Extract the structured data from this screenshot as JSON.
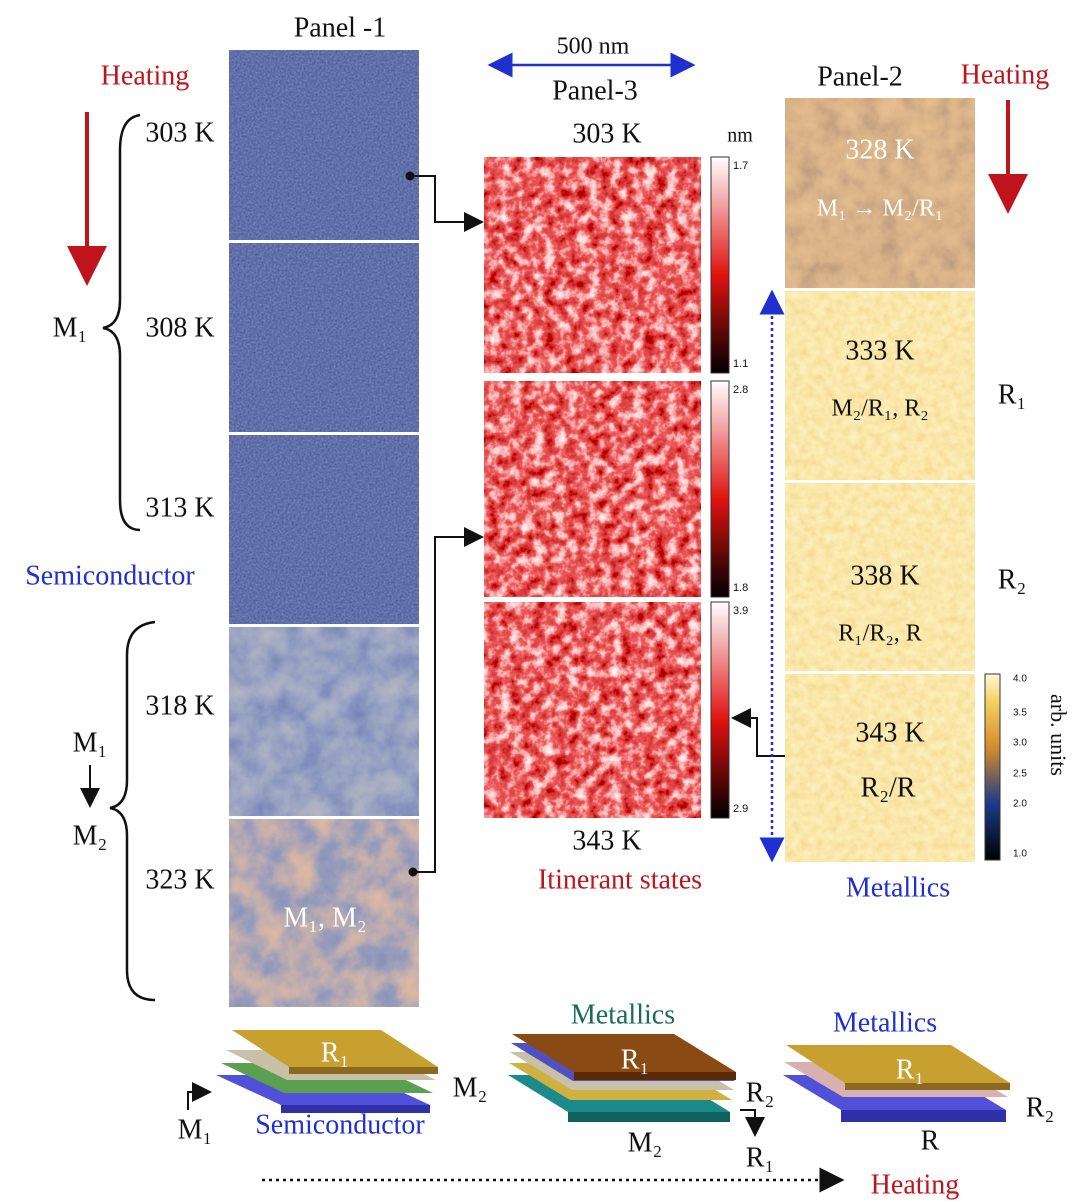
{
  "panel1": {
    "title": "Panel -1",
    "heading": "Heating",
    "temps": [
      "303 K",
      "308 K",
      "313 K",
      "318 K",
      "323 K"
    ],
    "phase_upper": "M₁",
    "semiconductor": "Semiconductor",
    "transition_from": "M₁",
    "transition_to": "M₂",
    "image_label": "M₁, M₂"
  },
  "panel3": {
    "scale": "500 nm",
    "title": "Panel-3",
    "top_temp": "303 K",
    "unit": "nm",
    "colorbars": [
      [
        "1.7",
        "1.1"
      ],
      [
        "2.8",
        "1.8"
      ],
      [
        "3.9",
        "2.9"
      ]
    ],
    "bottom_temp": "343 K",
    "caption": "Itinerant states"
  },
  "panel2": {
    "title": "Panel-2",
    "heading": "Heating",
    "images": [
      {
        "temp": "328 K",
        "phase": "M₁ → M₂/R₁"
      },
      {
        "temp": "333 K",
        "phase": "M₂/R₁, R₂",
        "side": "R₁"
      },
      {
        "temp": "338 K",
        "phase": "R₁/R₂, R",
        "side": "R₂"
      },
      {
        "temp": "343 K",
        "phase": "R₂/R"
      }
    ],
    "colorbar": [
      "4.0",
      "3.5",
      "3.0",
      "2.5",
      "2.0",
      "1.0"
    ],
    "unit": "arb. units",
    "caption": "Metallics"
  },
  "bottom": {
    "left": {
      "top": "R₁",
      "right": "M₂",
      "corner": "M₁",
      "label": "Semiconductor"
    },
    "middle": {
      "title": "Metallics",
      "top": "R₁",
      "right": "R₂",
      "below": "M₂",
      "arrow": "R₁"
    },
    "right": {
      "title": "Metallics",
      "top": "R₁",
      "right": "R₂",
      "below": "R"
    },
    "heating": "Heating"
  }
}
